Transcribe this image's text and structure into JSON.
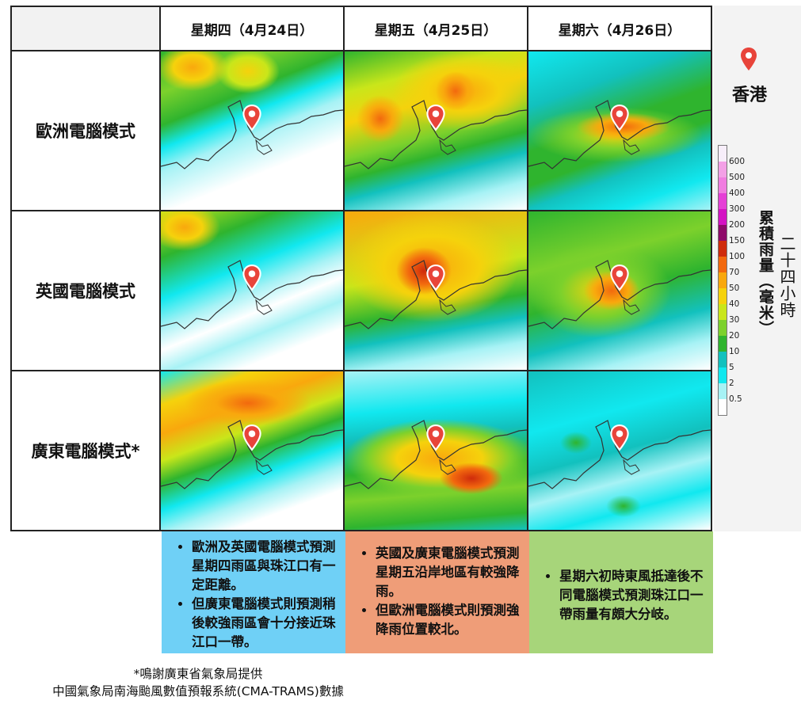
{
  "header": {
    "days": [
      "星期四（4月24日）",
      "星期五（4月25日）",
      "星期六（4月26日）"
    ]
  },
  "models": [
    {
      "label": "歐洲電腦模式"
    },
    {
      "label": "英國電腦模式"
    },
    {
      "label": "廣東電腦模式*"
    }
  ],
  "maps": [
    [
      {
        "model": "歐洲電腦模式",
        "day": "星期四",
        "dominant": "green NW, light cyan/white south",
        "intensity": "moderate NW, light near HK"
      },
      {
        "model": "歐洲電腦模式",
        "day": "星期五",
        "dominant": "orange/yellow north, green, cyan south",
        "intensity": "heavy inland north"
      },
      {
        "model": "歐洲電腦模式",
        "day": "星期六",
        "dominant": "cyan, green, orange band along coast",
        "intensity": "moderate-heavy near HK"
      }
    ],
    [
      {
        "model": "英國電腦模式",
        "day": "星期四",
        "dominant": "yellow/green NW, cyan, white south",
        "intensity": "light near HK"
      },
      {
        "model": "英國電腦模式",
        "day": "星期五",
        "dominant": "orange/red center, yellow, green",
        "intensity": "heavy coastal"
      },
      {
        "model": "英國電腦模式",
        "day": "星期六",
        "dominant": "green, yellow, orange near HK",
        "intensity": "moderate"
      }
    ],
    [
      {
        "model": "廣東電腦模式*",
        "day": "星期四",
        "dominant": "orange/yellow band north, green, white south",
        "intensity": "heavy north of HK"
      },
      {
        "model": "廣東電腦模式*",
        "day": "星期五",
        "dominant": "orange/red near HK, green, cyan",
        "intensity": "heavy near HK"
      },
      {
        "model": "廣東電腦模式*",
        "day": "星期六",
        "dominant": "cyan/teal, light green patches",
        "intensity": "light"
      }
    ]
  ],
  "legend": {
    "location_label": "香港",
    "colorbar_title_1": "累積雨量（毫米）",
    "colorbar_title_2": "二十四小時",
    "ticks": [
      "600",
      "500",
      "400",
      "300",
      "200",
      "150",
      "100",
      "70",
      "50",
      "40",
      "30",
      "20",
      "10",
      "5",
      "2",
      "0.5"
    ],
    "colors": [
      "#f7eefa",
      "#f3a0e6",
      "#f07ce0",
      "#e53fd6",
      "#d413c3",
      "#8e0a6a",
      "#cf2b0c",
      "#f2690e",
      "#f9a80d",
      "#f5d20c",
      "#c9e61a",
      "#7cd12c",
      "#2fb42e",
      "#12c1be",
      "#11e8ef",
      "#a7f2f5",
      "#ffffff"
    ],
    "pin_color": "#e8443a"
  },
  "notes": [
    {
      "color": "#6fd0f6",
      "bullets": [
        "歐洲及英國電腦模式預測星期四雨區與珠江口有一定距離。",
        "但廣東電腦模式則預測稍後較強雨區會十分接近珠江口一帶。"
      ]
    },
    {
      "color": "#ef9d78",
      "bullets": [
        "英國及廣東電腦模式預測星期五沿岸地區有較強降雨。",
        "但歐洲電腦模式則預測強降雨位置較北。"
      ]
    },
    {
      "color": "#a7d57a",
      "bullets": [
        "星期六初時東風抵達後不同電腦模式預測珠江口一帶雨量有頗大分岐。"
      ]
    }
  ],
  "footer": {
    "line1": "*鳴謝廣東省氣象局提供",
    "line2": "中國氣象局南海颱風數值預報系統(CMA-TRAMS)數據"
  }
}
